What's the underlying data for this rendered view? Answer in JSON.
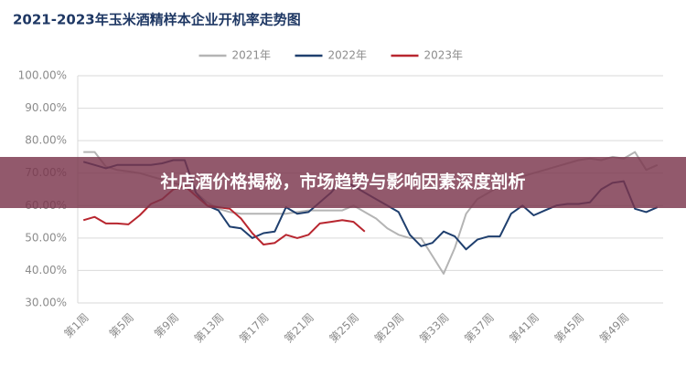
{
  "chart_data": {
    "type": "line",
    "title": "2021-2023年玉米酒精样本企业开机率走势图",
    "banner": "社店酒价格揭秘，市场趋势与影响因素深度剖析",
    "categories": [
      "第1周",
      null,
      null,
      null,
      "第5周",
      null,
      null,
      null,
      "第9周",
      null,
      null,
      null,
      "第13周",
      null,
      null,
      null,
      "第17周",
      null,
      null,
      null,
      "第21周",
      null,
      null,
      null,
      "第25周",
      null,
      null,
      null,
      "第29周",
      null,
      null,
      null,
      "第33周",
      null,
      null,
      null,
      "第37周",
      null,
      null,
      null,
      "第41周",
      null,
      null,
      null,
      "第45周",
      null,
      null,
      null,
      "第49周",
      null,
      null,
      null
    ],
    "series": [
      {
        "name": "2021年",
        "color": "#b4b4b4",
        "values": [
          76.5,
          76.5,
          72,
          71,
          70.5,
          70,
          69,
          68,
          67,
          66,
          64,
          61,
          59,
          58,
          57.5,
          57.5,
          57.5,
          57.5,
          57.5,
          58,
          58.5,
          58.5,
          58.5,
          58.5,
          60,
          58,
          56,
          53,
          51,
          50,
          50,
          44.5,
          39,
          47,
          57.5,
          62,
          64,
          66,
          68,
          69,
          70,
          71,
          72,
          73,
          74,
          74.5,
          74,
          75,
          74.5,
          76.5,
          71,
          72.5
        ]
      },
      {
        "name": "2022年",
        "color": "#1f3f6e",
        "values": [
          73.5,
          72.5,
          71.5,
          72.5,
          72.5,
          72.5,
          72.5,
          73,
          74,
          74,
          64,
          60,
          58.5,
          53.5,
          53,
          50,
          51.5,
          52,
          59.5,
          57.5,
          58,
          61,
          64,
          68,
          66,
          64,
          62,
          60,
          58,
          51,
          47.5,
          48.5,
          52,
          50.5,
          46.5,
          49.5,
          50.5,
          50.5,
          57.5,
          60,
          57,
          58.5,
          60,
          60.5,
          60.5,
          61,
          65,
          67,
          67.5,
          59,
          58,
          59.5
        ]
      },
      {
        "name": "2023年",
        "color": "#b8262f",
        "values": [
          55.5,
          56.5,
          54.5,
          54.5,
          54.2,
          57,
          60.5,
          62,
          65,
          66,
          63,
          60,
          59.5,
          59,
          56,
          51.5,
          48,
          48.5,
          51,
          50,
          51,
          54.5,
          55,
          55.5,
          55,
          52,
          null,
          null,
          null,
          null,
          null,
          null,
          null,
          null,
          null,
          null,
          null,
          null,
          null,
          null,
          null,
          null,
          null,
          null,
          null,
          null,
          null,
          null,
          null,
          null,
          null,
          null
        ]
      }
    ],
    "ylim": [
      30,
      100
    ],
    "yticks": [
      {
        "value": 30,
        "label": "30.00%"
      },
      {
        "value": 40,
        "label": "40.00%"
      },
      {
        "value": 50,
        "label": "50.00%"
      },
      {
        "value": 60,
        "label": "60.00%"
      },
      {
        "value": 70,
        "label": "70.00%"
      },
      {
        "value": 80,
        "label": "80.00%"
      },
      {
        "value": 90,
        "label": "90.00%"
      },
      {
        "value": 100,
        "label": "100.00%"
      }
    ],
    "grid": true,
    "legend": "top"
  }
}
